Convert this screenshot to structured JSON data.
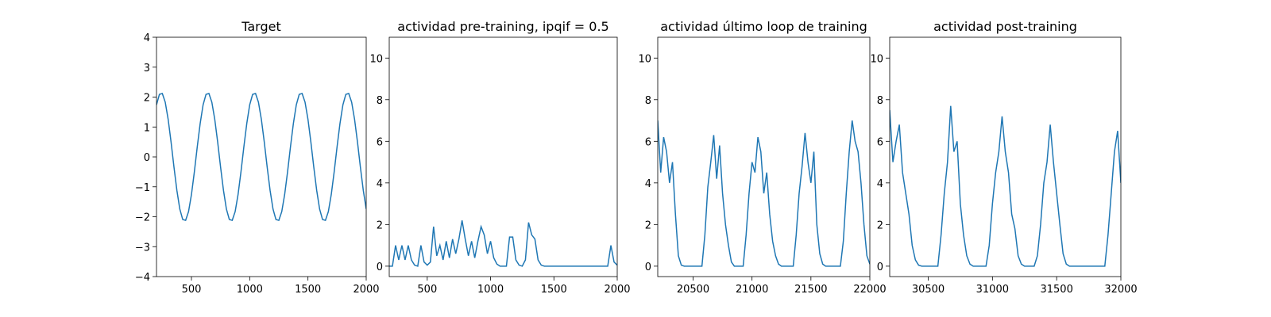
{
  "chart_data": [
    {
      "type": "line",
      "title": "Target",
      "color": "#1f77b4",
      "x": [
        200,
        225,
        250,
        275,
        300,
        325,
        350,
        375,
        400,
        425,
        450,
        475,
        500,
        525,
        550,
        575,
        600,
        625,
        650,
        675,
        700,
        725,
        750,
        775,
        800,
        825,
        850,
        875,
        900,
        925,
        950,
        975,
        1000,
        1025,
        1050,
        1075,
        1100,
        1125,
        1150,
        1175,
        1200,
        1225,
        1250,
        1275,
        1300,
        1325,
        1350,
        1375,
        1400,
        1425,
        1450,
        1475,
        1500,
        1525,
        1550,
        1575,
        1600,
        1625,
        1650,
        1675,
        1700,
        1725,
        1750,
        1775,
        1800,
        1825,
        1850,
        1875,
        1900,
        1925,
        1950,
        1975,
        2000
      ],
      "values": [
        1.74,
        2.09,
        2.12,
        1.83,
        1.26,
        0.5,
        -0.34,
        -1.12,
        -1.74,
        -2.09,
        -2.12,
        -1.83,
        -1.26,
        -0.5,
        0.34,
        1.12,
        1.74,
        2.09,
        2.12,
        1.83,
        1.26,
        0.5,
        -0.34,
        -1.12,
        -1.74,
        -2.09,
        -2.12,
        -1.83,
        -1.26,
        -0.5,
        0.34,
        1.12,
        1.74,
        2.09,
        2.12,
        1.83,
        1.26,
        0.5,
        -0.34,
        -1.12,
        -1.74,
        -2.09,
        -2.12,
        -1.83,
        -1.26,
        -0.5,
        0.34,
        1.12,
        1.74,
        2.09,
        2.12,
        1.83,
        1.26,
        0.5,
        -0.34,
        -1.12,
        -1.74,
        -2.09,
        -2.12,
        -1.83,
        -1.26,
        -0.5,
        0.34,
        1.12,
        1.74,
        2.09,
        2.12,
        1.83,
        1.26,
        0.5,
        -0.34,
        -1.12,
        -1.74
      ],
      "xlim": [
        200,
        2000
      ],
      "xticks": [
        500,
        1000,
        1500,
        2000
      ],
      "ylim": [
        -4,
        4
      ],
      "yticks": [
        {
          "value": -4,
          "label": "−4"
        },
        {
          "value": -3,
          "label": "−3"
        },
        {
          "value": -2,
          "label": "−2"
        },
        {
          "value": -1,
          "label": "−1"
        },
        0,
        1,
        2,
        3,
        4
      ]
    },
    {
      "type": "line",
      "title": "actividad pre-training, ipqif = 0.5",
      "color": "#1f77b4",
      "x": [
        200,
        225,
        250,
        275,
        300,
        325,
        350,
        375,
        400,
        425,
        450,
        475,
        500,
        525,
        550,
        575,
        600,
        625,
        650,
        675,
        700,
        725,
        750,
        775,
        800,
        825,
        850,
        875,
        900,
        925,
        950,
        975,
        1000,
        1025,
        1050,
        1075,
        1100,
        1125,
        1150,
        1175,
        1200,
        1225,
        1250,
        1275,
        1300,
        1325,
        1350,
        1375,
        1400,
        1425,
        1450,
        1475,
        1500,
        1525,
        1550,
        1575,
        1600,
        1625,
        1650,
        1675,
        1700,
        1725,
        1750,
        1775,
        1800,
        1825,
        1850,
        1875,
        1900,
        1925,
        1950,
        1975,
        2000
      ],
      "values": [
        0,
        0,
        1.0,
        0.3,
        1.0,
        0.3,
        1.0,
        0.3,
        0.05,
        0,
        1.0,
        0.2,
        0.05,
        0.2,
        1.9,
        0.5,
        1.0,
        0.3,
        1.2,
        0.4,
        1.3,
        0.6,
        1.3,
        2.2,
        1.3,
        0.5,
        1.2,
        0.4,
        1.2,
        1.9,
        1.5,
        0.6,
        1.2,
        0.4,
        0.1,
        0,
        0,
        0,
        1.4,
        1.4,
        0.3,
        0.05,
        0,
        0.3,
        2.1,
        1.5,
        1.3,
        0.3,
        0.05,
        0,
        0,
        0,
        0,
        0,
        0,
        0,
        0,
        0,
        0,
        0,
        0,
        0,
        0,
        0,
        0,
        0,
        0,
        0,
        0,
        0,
        1.0,
        0.2,
        0.05
      ],
      "xlim": [
        200,
        2000
      ],
      "xticks": [
        500,
        1000,
        1500,
        2000
      ],
      "ylim": [
        -0.5,
        11
      ],
      "yticks": [
        0,
        2,
        4,
        6,
        8,
        10
      ]
    },
    {
      "type": "line",
      "title": "actividad último loop de training",
      "color": "#1f77b4",
      "x": [
        20200,
        20225,
        20250,
        20275,
        20300,
        20325,
        20350,
        20375,
        20400,
        20425,
        20450,
        20475,
        20500,
        20525,
        20550,
        20575,
        20600,
        20625,
        20650,
        20675,
        20700,
        20725,
        20750,
        20775,
        20800,
        20825,
        20850,
        20875,
        20900,
        20925,
        20950,
        20975,
        21000,
        21025,
        21050,
        21075,
        21100,
        21125,
        21150,
        21175,
        21200,
        21225,
        21250,
        21275,
        21300,
        21325,
        21350,
        21375,
        21400,
        21425,
        21450,
        21475,
        21500,
        21525,
        21550,
        21575,
        21600,
        21625,
        21650,
        21675,
        21700,
        21725,
        21750,
        21775,
        21800,
        21825,
        21850,
        21875,
        21900,
        21925,
        21950,
        21975,
        22000
      ],
      "values": [
        7.0,
        4.5,
        6.2,
        5.5,
        4.0,
        5.0,
        2.5,
        0.5,
        0.05,
        0,
        0,
        0,
        0,
        0,
        0,
        0,
        1.5,
        3.8,
        5.0,
        6.3,
        4.2,
        5.8,
        3.5,
        2.0,
        1.0,
        0.2,
        0,
        0,
        0,
        0,
        1.5,
        3.5,
        5.0,
        4.5,
        6.2,
        5.5,
        3.5,
        4.5,
        2.5,
        1.2,
        0.5,
        0.1,
        0,
        0,
        0,
        0,
        0,
        1.5,
        3.5,
        4.8,
        6.4,
        5.0,
        4.0,
        5.5,
        2.0,
        0.6,
        0.1,
        0,
        0,
        0,
        0,
        0,
        0,
        1.2,
        3.5,
        5.5,
        7.0,
        6.0,
        5.5,
        4.0,
        2.0,
        0.5,
        0.1
      ],
      "xlim": [
        20200,
        22000
      ],
      "xticks": [
        20500,
        21000,
        21500,
        22000
      ],
      "ylim": [
        -0.5,
        11
      ],
      "yticks": [
        0,
        2,
        4,
        6,
        8,
        10
      ]
    },
    {
      "type": "line",
      "title": "actividad post-training",
      "color": "#1f77b4",
      "x": [
        30200,
        30225,
        30250,
        30275,
        30300,
        30325,
        30350,
        30375,
        30400,
        30425,
        30450,
        30475,
        30500,
        30525,
        30550,
        30575,
        30600,
        30625,
        30650,
        30675,
        30700,
        30725,
        30750,
        30775,
        30800,
        30825,
        30850,
        30875,
        30900,
        30925,
        30950,
        30975,
        31000,
        31025,
        31050,
        31075,
        31100,
        31125,
        31150,
        31175,
        31200,
        31225,
        31250,
        31275,
        31300,
        31325,
        31350,
        31375,
        31400,
        31425,
        31450,
        31475,
        31500,
        31525,
        31550,
        31575,
        31600,
        31625,
        31650,
        31675,
        31700,
        31725,
        31750,
        31775,
        31800,
        31825,
        31850,
        31875,
        31900,
        31925,
        31950,
        31975,
        32000
      ],
      "values": [
        7.5,
        5.0,
        6.0,
        6.8,
        4.5,
        3.5,
        2.5,
        1.0,
        0.3,
        0.05,
        0,
        0,
        0,
        0,
        0,
        0,
        1.5,
        3.5,
        5.0,
        7.7,
        5.5,
        6.0,
        3.0,
        1.5,
        0.5,
        0.1,
        0,
        0,
        0,
        0,
        0,
        1.0,
        3.0,
        4.5,
        5.5,
        7.2,
        5.5,
        4.5,
        2.5,
        1.8,
        0.5,
        0.1,
        0,
        0,
        0,
        0,
        0.5,
        2.0,
        4.0,
        5.0,
        6.8,
        5.0,
        3.5,
        2.0,
        0.6,
        0.1,
        0,
        0,
        0,
        0,
        0,
        0,
        0,
        0,
        0,
        0,
        0,
        0,
        1.5,
        3.5,
        5.5,
        6.5,
        4.0
      ],
      "xlim": [
        30200,
        32000
      ],
      "xticks": [
        30500,
        31000,
        31500,
        32000
      ],
      "ylim": [
        -0.5,
        11
      ],
      "yticks": [
        0,
        2,
        4,
        6,
        8,
        10
      ]
    }
  ]
}
